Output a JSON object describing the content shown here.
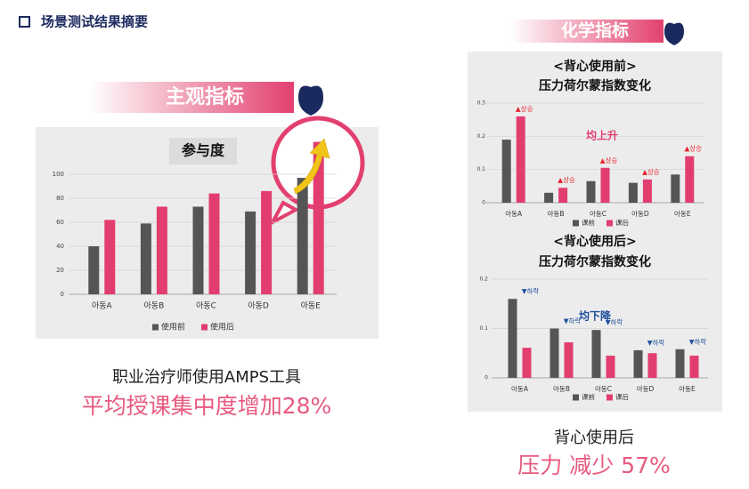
{
  "slide": {
    "heading": "场景测试结果摘要",
    "left_banner": "主观指标",
    "right_banner": "化学指标",
    "left_caption": "职业治疗师使用AMPS工具",
    "left_result": "平均授课集中度增加28%",
    "right_caption": "背心使用后",
    "right_result": "压力 减少 57%"
  },
  "chart_data": [
    {
      "type": "bar",
      "title": "参与度",
      "categories": [
        "아동A",
        "아동B",
        "아동C",
        "아동D",
        "아동E"
      ],
      "series": [
        {
          "name": "使用前",
          "color": "#555555",
          "values": [
            40,
            59,
            73,
            69,
            97
          ]
        },
        {
          "name": "使用后",
          "color": "#e23d6f",
          "values": [
            62,
            73,
            84,
            86,
            127
          ]
        }
      ],
      "ylim": [
        0,
        130
      ],
      "yticks": [
        0,
        20,
        40,
        60,
        80,
        100
      ],
      "grid": true,
      "legend": "bottom"
    },
    {
      "type": "bar",
      "title": "<背心使用前>",
      "subtitle": "压力荷尔蒙指数变化",
      "annotation": "均上升",
      "categories": [
        "아동A",
        "아동B",
        "아동C",
        "아동D",
        "아동E"
      ],
      "series": [
        {
          "name": "课前",
          "color": "#555555",
          "values": [
            0.19,
            0.03,
            0.065,
            0.06,
            0.085
          ]
        },
        {
          "name": "课后",
          "color": "#e23d6f",
          "values": [
            0.26,
            0.045,
            0.105,
            0.07,
            0.14
          ]
        }
      ],
      "point_labels": [
        "▲상승",
        "▲상승",
        "▲상승",
        "▲상승",
        "▲상승"
      ],
      "point_label_color": "#e8202a",
      "ylim": [
        0,
        0.3
      ],
      "yticks": [
        0,
        0.1,
        0.2,
        0.3
      ],
      "grid": true,
      "legend": "bottom"
    },
    {
      "type": "bar",
      "title": "<背心使用后>",
      "subtitle": "压力荷尔蒙指数变化",
      "annotation": "均下降",
      "categories": [
        "아동A",
        "아동B",
        "아동C",
        "아동D",
        "아동E"
      ],
      "series": [
        {
          "name": "课前",
          "color": "#555555",
          "values": [
            0.16,
            0.1,
            0.097,
            0.056,
            0.058
          ]
        },
        {
          "name": "课后",
          "color": "#e23d6f",
          "values": [
            0.061,
            0.072,
            0.045,
            0.05,
            0.045
          ]
        }
      ],
      "point_labels": [
        "▼하락",
        "▼하락",
        "▼하락",
        "▼하락",
        "▼하락"
      ],
      "point_label_color": "#1f4e9c",
      "ylim": [
        0,
        0.2
      ],
      "yticks": [
        0,
        0.1,
        0.2
      ],
      "grid": true,
      "legend": "bottom"
    }
  ]
}
